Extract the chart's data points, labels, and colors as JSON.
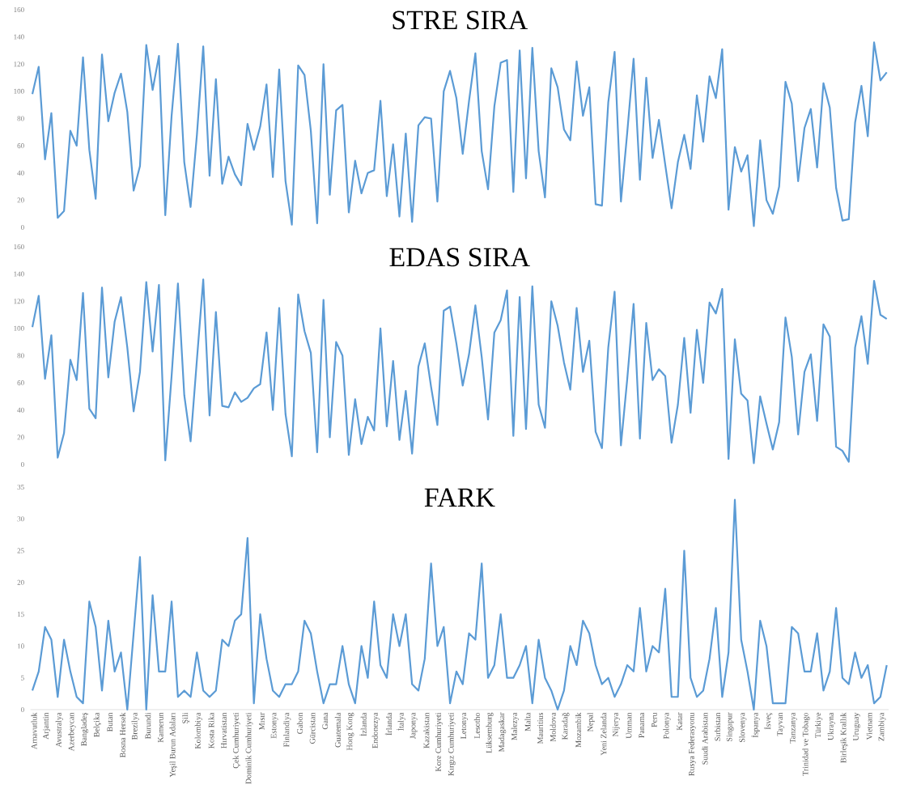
{
  "chart_data": [
    {
      "type": "line",
      "title": "STRE SIRA",
      "color": "#5b9bd5",
      "ylim": [
        0,
        160
      ],
      "yticks": [
        0,
        20,
        40,
        60,
        80,
        100,
        120,
        140,
        160
      ],
      "tick_labels": "y",
      "values": [
        98,
        118,
        50,
        84,
        7,
        12,
        71,
        60,
        125,
        57,
        21,
        127,
        78,
        99,
        113,
        85,
        27,
        45,
        134,
        101,
        126,
        9,
        82,
        135,
        48,
        15,
        68,
        133,
        38,
        109,
        32,
        52,
        39,
        31,
        76,
        57,
        74,
        105,
        37,
        116,
        34,
        2,
        119,
        112,
        71,
        3,
        120,
        24,
        86,
        90,
        11,
        49,
        25,
        40,
        42,
        93,
        23,
        61,
        8,
        69,
        4,
        75,
        81,
        80,
        19,
        100,
        115,
        95,
        54,
        93,
        128,
        56,
        28,
        89,
        121,
        123,
        26,
        130,
        36,
        132,
        56,
        22,
        117,
        103,
        72,
        64,
        122,
        82,
        103,
        17,
        16,
        92,
        129,
        19,
        70,
        124,
        35,
        110,
        51,
        79,
        46,
        14,
        48,
        68,
        43,
        97,
        63,
        111,
        95,
        131,
        13,
        59,
        41,
        53,
        1,
        64,
        20,
        10,
        30,
        107,
        91,
        34,
        73,
        87,
        44,
        106,
        88,
        29,
        5,
        6,
        77,
        104,
        67,
        136,
        108,
        114
      ]
    },
    {
      "type": "line",
      "title": "EDAS SIRA",
      "color": "#5b9bd5",
      "ylim": [
        0,
        160
      ],
      "yticks": [
        0,
        20,
        40,
        60,
        80,
        100,
        120,
        140,
        160
      ],
      "tick_labels": "y",
      "values": [
        101,
        124,
        63,
        95,
        5,
        23,
        77,
        62,
        126,
        41,
        34,
        130,
        64,
        105,
        123,
        86,
        39,
        68,
        134,
        83,
        132,
        3,
        65,
        133,
        51,
        17,
        77,
        136,
        36,
        112,
        43,
        42,
        53,
        46,
        49,
        56,
        59,
        97,
        40,
        115,
        37,
        6,
        125,
        98,
        82,
        9,
        121,
        20,
        90,
        80,
        7,
        48,
        15,
        35,
        25,
        100,
        28,
        76,
        18,
        54,
        8,
        72,
        89,
        57,
        29,
        113,
        116,
        89,
        58,
        81,
        117,
        79,
        33,
        97,
        106,
        128,
        21,
        123,
        26,
        131,
        44,
        27,
        120,
        102,
        75,
        55,
        115,
        68,
        91,
        24,
        12,
        86,
        127,
        14,
        63,
        118,
        19,
        104,
        62,
        70,
        65,
        16,
        44,
        93,
        38,
        99,
        60,
        119,
        111,
        129,
        4,
        92,
        52,
        47,
        1,
        50,
        30,
        11,
        31,
        108,
        79,
        22,
        68,
        81,
        32,
        103,
        94,
        13,
        10,
        2,
        86,
        109,
        74,
        135,
        110,
        107
      ]
    },
    {
      "type": "line",
      "title": "FARK",
      "color": "#5b9bd5",
      "ylim": [
        0,
        35
      ],
      "yticks": [
        0,
        5,
        10,
        15,
        20,
        25,
        30,
        35
      ],
      "categories": [
        "Arnavutluk",
        null,
        "Arjantin",
        null,
        "Avustralya",
        null,
        "Azerbeycan",
        null,
        "Bangladeş",
        null,
        "Belçika",
        null,
        "Butan",
        null,
        "Bosna Hersek",
        null,
        "Brezilya",
        null,
        "Burundi",
        null,
        "Kamerun",
        null,
        "Yeşil Burun Adaları",
        null,
        "Şili",
        null,
        "Kolombiya",
        null,
        "Kosta Rika",
        null,
        "Hırvatistan",
        null,
        "Çek Cumhuriyeti",
        null,
        "Dominik Cumhuriyeti",
        null,
        "Mısır",
        null,
        "Estonya",
        null,
        "Finlandiya",
        null,
        "Gabon",
        null,
        "Gürcistan",
        null,
        "Gana",
        null,
        "Guatemala",
        null,
        "Hong Kong",
        null,
        "İzlanda",
        null,
        "Endonezya",
        null,
        "İrlanda",
        null,
        "İtalya",
        null,
        "Japonya",
        null,
        "Kazakistan",
        null,
        "Kore Cumhuriyeti",
        null,
        "Kırgız Cumhuriyeti",
        null,
        "Letonya",
        null,
        "Lesotho",
        null,
        "Lüksemburg",
        null,
        "Madagaskar",
        null,
        "Malezya",
        null,
        "Malta",
        null,
        "Mauritius",
        null,
        "Moldova",
        null,
        "Karadağ",
        null,
        "Mozambik",
        null,
        "Nepal",
        null,
        "Yeni Zelanda",
        null,
        "Nijerya",
        null,
        "Umman",
        null,
        "Panama",
        null,
        "Peru",
        null,
        "Polonya",
        null,
        "Katar",
        null,
        "Rusya Federasyonu",
        null,
        "Suudi Arabistan",
        null,
        "Sırbistan",
        null,
        "Singapur",
        null,
        "Slovenya",
        null,
        "İspanya",
        null,
        "İsveç",
        null,
        "Tayvan",
        null,
        "Tanzanya",
        null,
        "Trinidad ve Tobago",
        null,
        "Türkiye",
        null,
        "Ukrayna",
        null,
        "Birleşik Krallık",
        null,
        "Uruguay",
        null,
        "Vietnam",
        null,
        "Zambiya",
        null
      ],
      "values": [
        3,
        6,
        13,
        11,
        2,
        11,
        6,
        2,
        1,
        17,
        13,
        3,
        14,
        6,
        9,
        0,
        12,
        24,
        0,
        18,
        6,
        6,
        17,
        2,
        3,
        2,
        9,
        3,
        2,
        3,
        11,
        10,
        14,
        15,
        27,
        1,
        15,
        8,
        3,
        2,
        4,
        4,
        6,
        14,
        12,
        6,
        1,
        4,
        4,
        10,
        4,
        1,
        10,
        5,
        17,
        7,
        5,
        15,
        10,
        15,
        4,
        3,
        8,
        23,
        10,
        13,
        1,
        6,
        4,
        12,
        11,
        23,
        5,
        7,
        15,
        5,
        5,
        7,
        10,
        1,
        11,
        5,
        3,
        0,
        3,
        10,
        7,
        14,
        12,
        7,
        4,
        5,
        2,
        4,
        7,
        6,
        16,
        6,
        10,
        9,
        19,
        2,
        2,
        25,
        5,
        2,
        3,
        8,
        16,
        2,
        9,
        33,
        11,
        6,
        0,
        14,
        10,
        1,
        1,
        1,
        13,
        12,
        6,
        6,
        12,
        3,
        6,
        16,
        5,
        4,
        9,
        5,
        7,
        1,
        2,
        7
      ]
    }
  ]
}
